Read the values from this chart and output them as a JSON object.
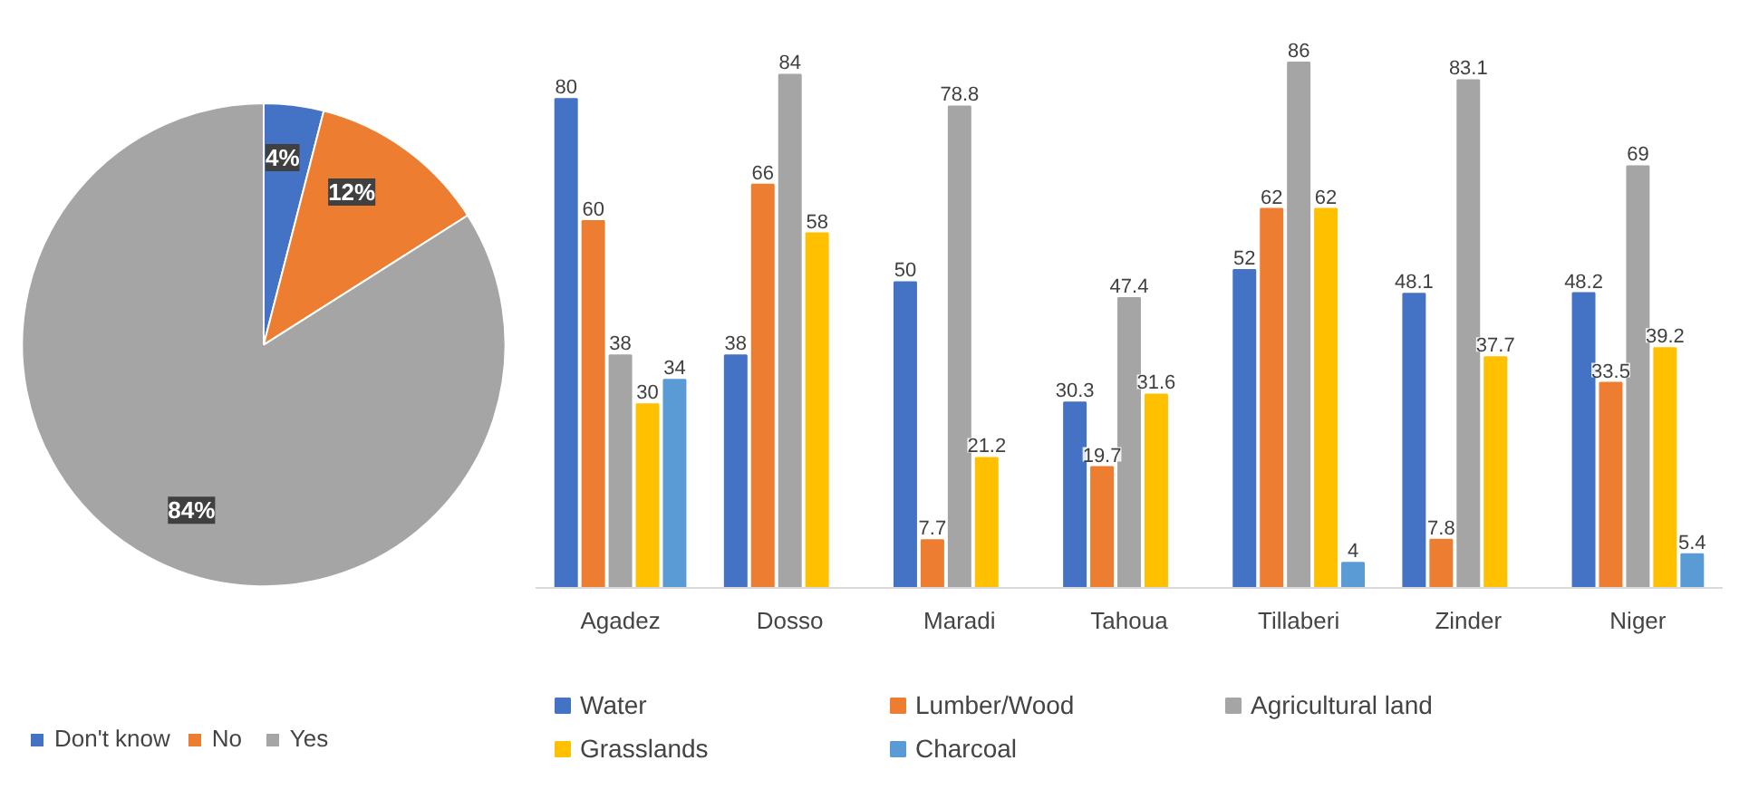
{
  "chart_data": [
    {
      "type": "pie",
      "categories": [
        "Don't know",
        "No",
        "Yes"
      ],
      "values": [
        4,
        12,
        84
      ],
      "colors": [
        "#4472c4",
        "#ed7d31",
        "#a5a5a5"
      ],
      "value_labels": [
        "4%",
        "12%",
        "84%"
      ],
      "legend": "bottom"
    },
    {
      "type": "bar",
      "categories": [
        "Agadez",
        "Dosso",
        "Maradi",
        "Tahoua",
        "Tillaberi",
        "Zinder",
        "Niger"
      ],
      "series": [
        {
          "name": "Water",
          "color": "#4472c4",
          "values": [
            80,
            38,
            50,
            30.3,
            52,
            48.1,
            48.2
          ]
        },
        {
          "name": "Lumber/Wood",
          "color": "#ed7d31",
          "values": [
            60,
            66,
            7.7,
            19.7,
            62,
            7.8,
            33.5
          ]
        },
        {
          "name": "Agricultural land",
          "color": "#a5a5a5",
          "values": [
            38,
            84,
            78.8,
            47.4,
            86,
            83.1,
            69
          ]
        },
        {
          "name": "Grasslands",
          "color": "#ffc000",
          "values": [
            30,
            58,
            21.2,
            31.6,
            62,
            37.7,
            39.2
          ]
        },
        {
          "name": "Charcoal",
          "color": "#5b9bd5",
          "values": [
            34,
            null,
            null,
            null,
            4,
            null,
            5.4
          ]
        }
      ],
      "tick_labels": "x",
      "data_labels": true,
      "legend": "bottom"
    }
  ]
}
